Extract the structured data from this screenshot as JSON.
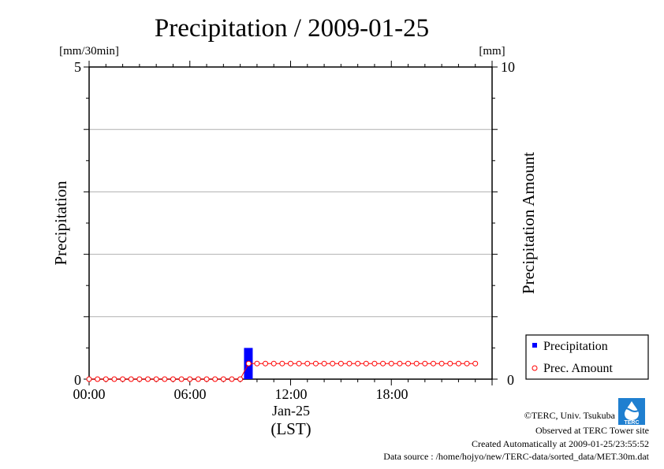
{
  "chart_data": {
    "type": "bar+line",
    "title": "Precipitation / 2009-01-25",
    "left_unit": "[mm/30min]",
    "right_unit": "[mm]",
    "ylabel_left": "Precipitation",
    "ylabel_right": "Precipitation Amount",
    "ylim_left": [
      0,
      5
    ],
    "ylim_right": [
      0,
      10
    ],
    "left_ticks": [
      "0",
      "5"
    ],
    "right_ticks": [
      "0",
      "10"
    ],
    "x_tick_labels": [
      "00:00",
      "06:00",
      "12:00",
      "18:00"
    ],
    "x_date_label": "Jan-25",
    "x_timezone_label": "(LST)",
    "grid": true,
    "legend_position": "bottom-right",
    "interval_minutes": 30,
    "series": [
      {
        "name": "Precipitation",
        "type": "bar",
        "axis": "left",
        "color": "#0000ff",
        "points": [
          {
            "time": "09:00",
            "value": 0.5
          }
        ]
      },
      {
        "name": "Prec. Amount",
        "type": "line",
        "axis": "right",
        "color": "#ff0000",
        "marker": "open-circle",
        "x": [
          "00:00",
          "00:30",
          "01:00",
          "01:30",
          "02:00",
          "02:30",
          "03:00",
          "03:30",
          "04:00",
          "04:30",
          "05:00",
          "05:30",
          "06:00",
          "06:30",
          "07:00",
          "07:30",
          "08:00",
          "08:30",
          "09:00",
          "09:30",
          "10:00",
          "10:30",
          "11:00",
          "11:30",
          "12:00",
          "12:30",
          "13:00",
          "13:30",
          "14:00",
          "14:30",
          "15:00",
          "15:30",
          "16:00",
          "16:30",
          "17:00",
          "17:30",
          "18:00",
          "18:30",
          "19:00",
          "19:30",
          "20:00",
          "20:30",
          "21:00",
          "21:30",
          "22:00",
          "22:30",
          "23:00"
        ],
        "values": [
          0,
          0,
          0,
          0,
          0,
          0,
          0,
          0,
          0,
          0,
          0,
          0,
          0,
          0,
          0,
          0,
          0,
          0,
          0,
          0.5,
          0.5,
          0.5,
          0.5,
          0.5,
          0.5,
          0.5,
          0.5,
          0.5,
          0.5,
          0.5,
          0.5,
          0.5,
          0.5,
          0.5,
          0.5,
          0.5,
          0.5,
          0.5,
          0.5,
          0.5,
          0.5,
          0.5,
          0.5,
          0.5,
          0.5,
          0.5,
          0.5
        ]
      }
    ]
  },
  "credits": {
    "copyright": "©TERC, Univ. Tsukuba",
    "observed": "Observed at TERC Tower site",
    "created": "Created Automatically at 2009-01-25/23:55:52",
    "source": "Data source : /home/hojyo/new/TERC-data/sorted_data/MET.30m.dat",
    "logo_text": "TERC"
  }
}
